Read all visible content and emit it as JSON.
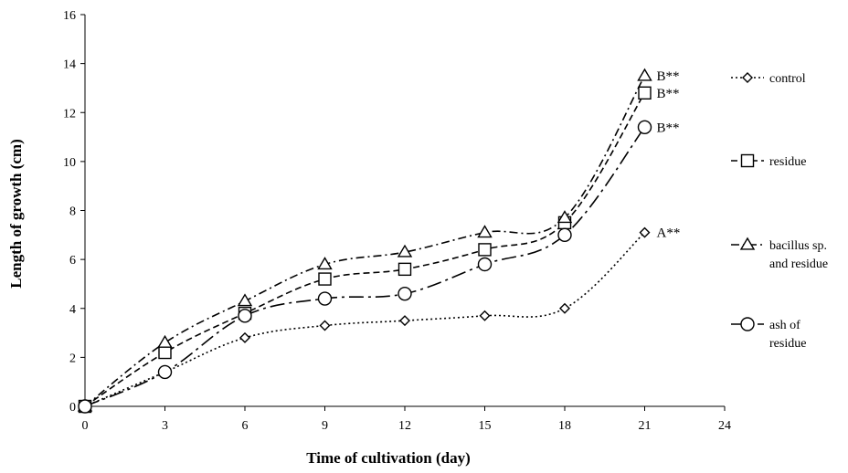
{
  "chart_data": {
    "type": "line",
    "title": "",
    "xlabel": "Time of cultivation (day)",
    "ylabel": "Length of growth (cm)",
    "xlim": [
      0,
      24
    ],
    "ylim": [
      0,
      16
    ],
    "xticks": [
      0,
      3,
      6,
      9,
      12,
      15,
      18,
      21,
      24
    ],
    "yticks": [
      0,
      2,
      4,
      6,
      8,
      10,
      12,
      14,
      16
    ],
    "grid": false,
    "legend_position": "right",
    "x": [
      0,
      3,
      6,
      9,
      12,
      15,
      18,
      21
    ],
    "series": [
      {
        "name": "control",
        "values": [
          0,
          1.4,
          2.8,
          3.3,
          3.5,
          3.7,
          4.0,
          7.1
        ],
        "marker": "diamond",
        "line_style": "dotted",
        "annotation": "A**"
      },
      {
        "name": "residue",
        "values": [
          0,
          2.2,
          3.8,
          5.2,
          5.6,
          6.4,
          7.5,
          12.8
        ],
        "marker": "square",
        "line_style": "dashed",
        "annotation": "B**"
      },
      {
        "name": "bacillus sp. and residue",
        "legend_lines": [
          "bacillus sp.",
          "and residue"
        ],
        "values": [
          0,
          2.6,
          4.3,
          5.8,
          6.3,
          7.1,
          7.7,
          13.5
        ],
        "marker": "triangle",
        "line_style": "dash-dot",
        "annotation": "B**"
      },
      {
        "name": "ash of residue",
        "legend_lines": [
          "ash of",
          "residue"
        ],
        "values": [
          0,
          1.4,
          3.7,
          4.4,
          4.6,
          5.8,
          7.0,
          11.4
        ],
        "marker": "circle",
        "line_style": "long-dash-dot",
        "annotation": "B**"
      }
    ]
  }
}
